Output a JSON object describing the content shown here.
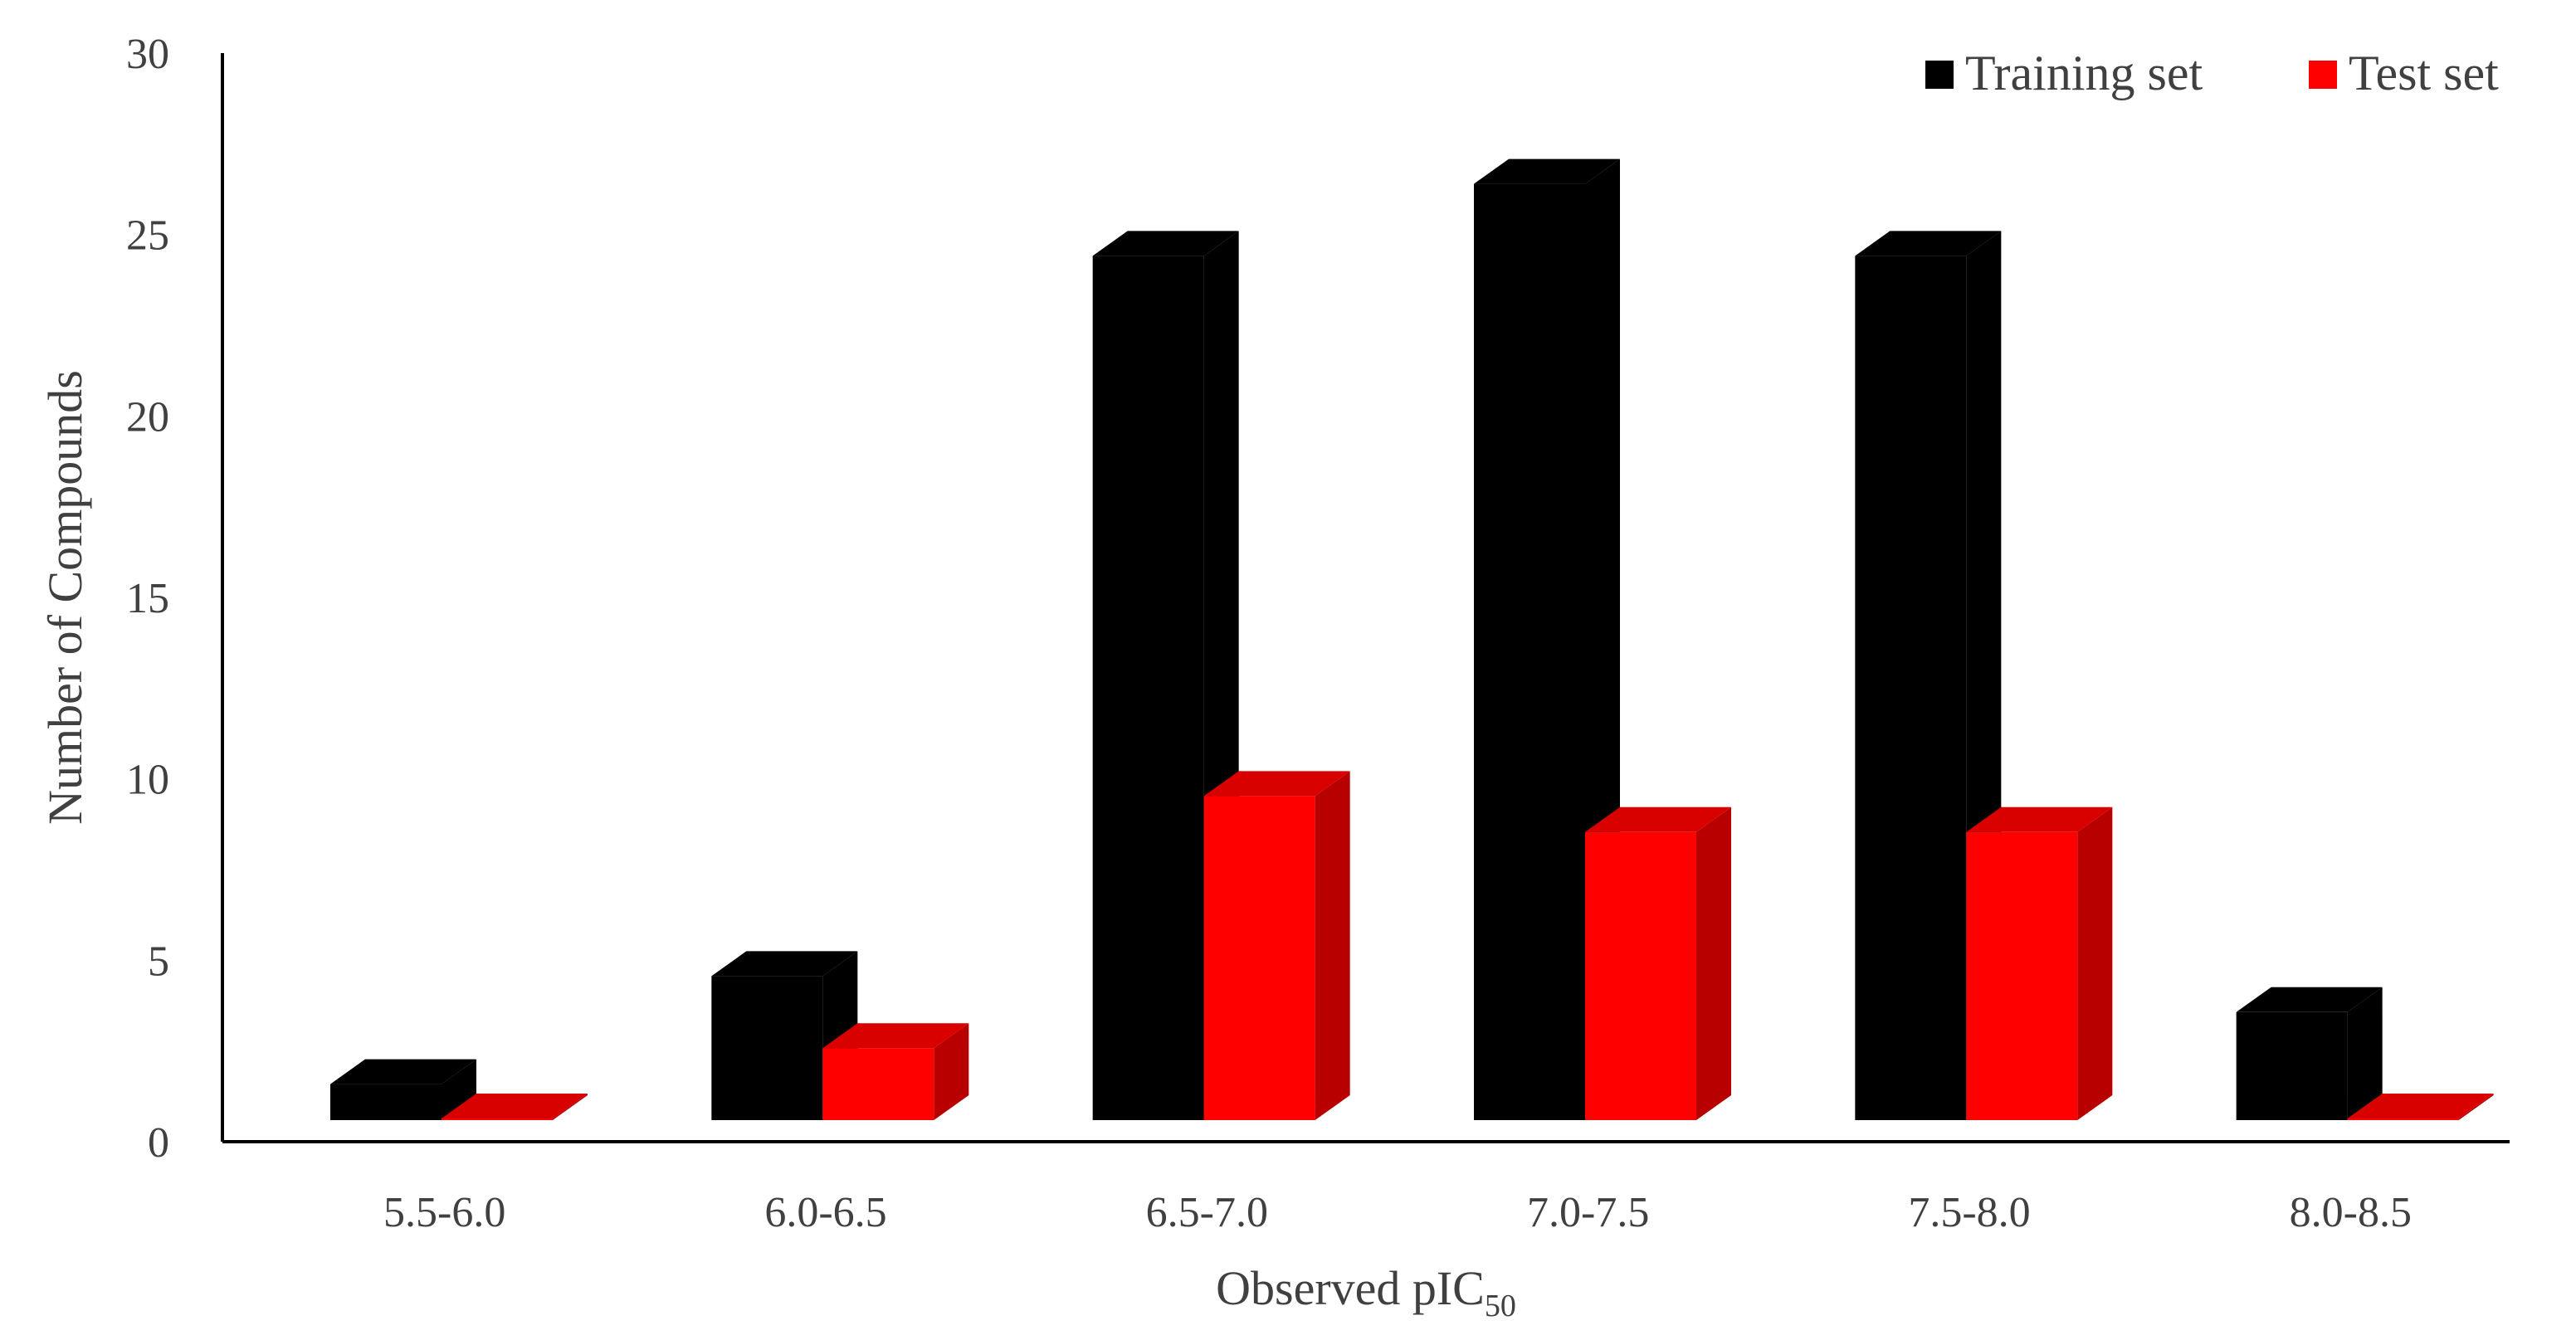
{
  "chart_data": {
    "type": "bar",
    "title": "",
    "xlabel": "Observed pIC",
    "xlabel_subscript": "50",
    "ylabel": "Number of Compounds",
    "categories": [
      "5.5-6.0",
      "6.0-6.5",
      "6.5-7.0",
      "7.0-7.5",
      "7.5-8.0",
      "8.0-8.5"
    ],
    "series": [
      {
        "name": "Training set",
        "color": "#000000",
        "values": [
          1,
          4,
          24,
          26,
          24,
          3
        ]
      },
      {
        "name": "Test set",
        "color": "#ff0000",
        "values": [
          0,
          2,
          9,
          8,
          8,
          0
        ]
      }
    ],
    "ylim": [
      0,
      30
    ],
    "yticks": [
      0,
      5,
      10,
      15,
      20,
      25,
      30
    ],
    "grid": false,
    "legend": "top-right",
    "style": "3d-bar"
  }
}
